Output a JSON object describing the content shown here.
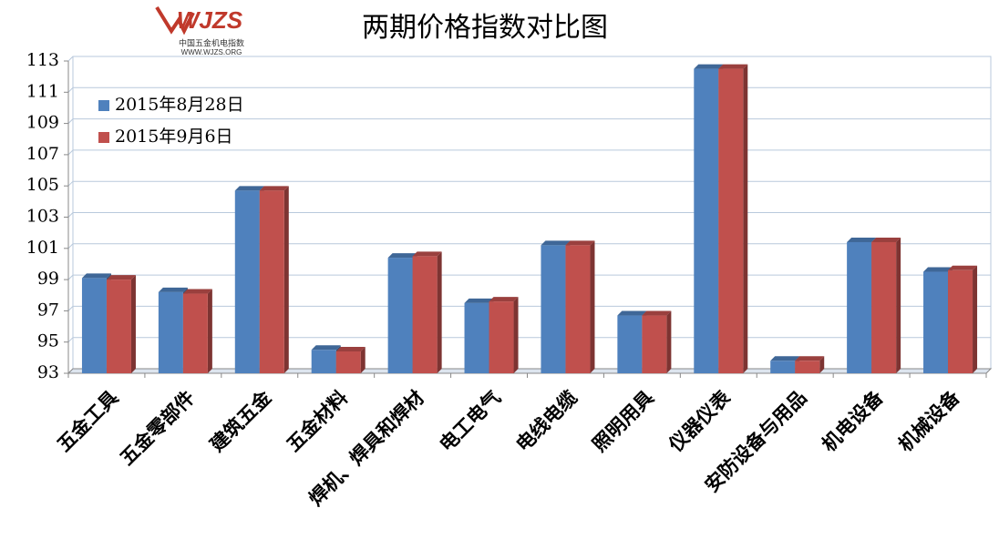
{
  "chart_data": {
    "type": "bar",
    "title": "两期价格指数对比图",
    "logo": {
      "mark": "WJZS",
      "name": "中国五金机电指数",
      "url": "WWW.WJZS.ORG"
    },
    "categories": [
      "五金工具",
      "五金零部件",
      "建筑五金",
      "五金材料",
      "焊机、焊具和焊材",
      "电工电气",
      "电线电缆",
      "照明用具",
      "仪器仪表",
      "安防设备与用品",
      "机电设备",
      "机械设备"
    ],
    "series": [
      {
        "name": "2015年8月28日",
        "color": "#4f81bd",
        "values": [
          99.1,
          98.2,
          104.7,
          94.5,
          100.4,
          97.5,
          101.2,
          96.7,
          112.5,
          93.8,
          101.4,
          99.5
        ]
      },
      {
        "name": "2015年9月6日",
        "color": "#c0504d",
        "values": [
          99.0,
          98.1,
          104.7,
          94.4,
          100.5,
          97.6,
          101.2,
          96.7,
          112.5,
          93.8,
          101.4,
          99.6
        ]
      }
    ],
    "ylim": [
      93,
      113
    ],
    "yticks": [
      93,
      95,
      97,
      99,
      101,
      103,
      105,
      107,
      109,
      111,
      113
    ],
    "grid": true,
    "legend": "top-left"
  }
}
